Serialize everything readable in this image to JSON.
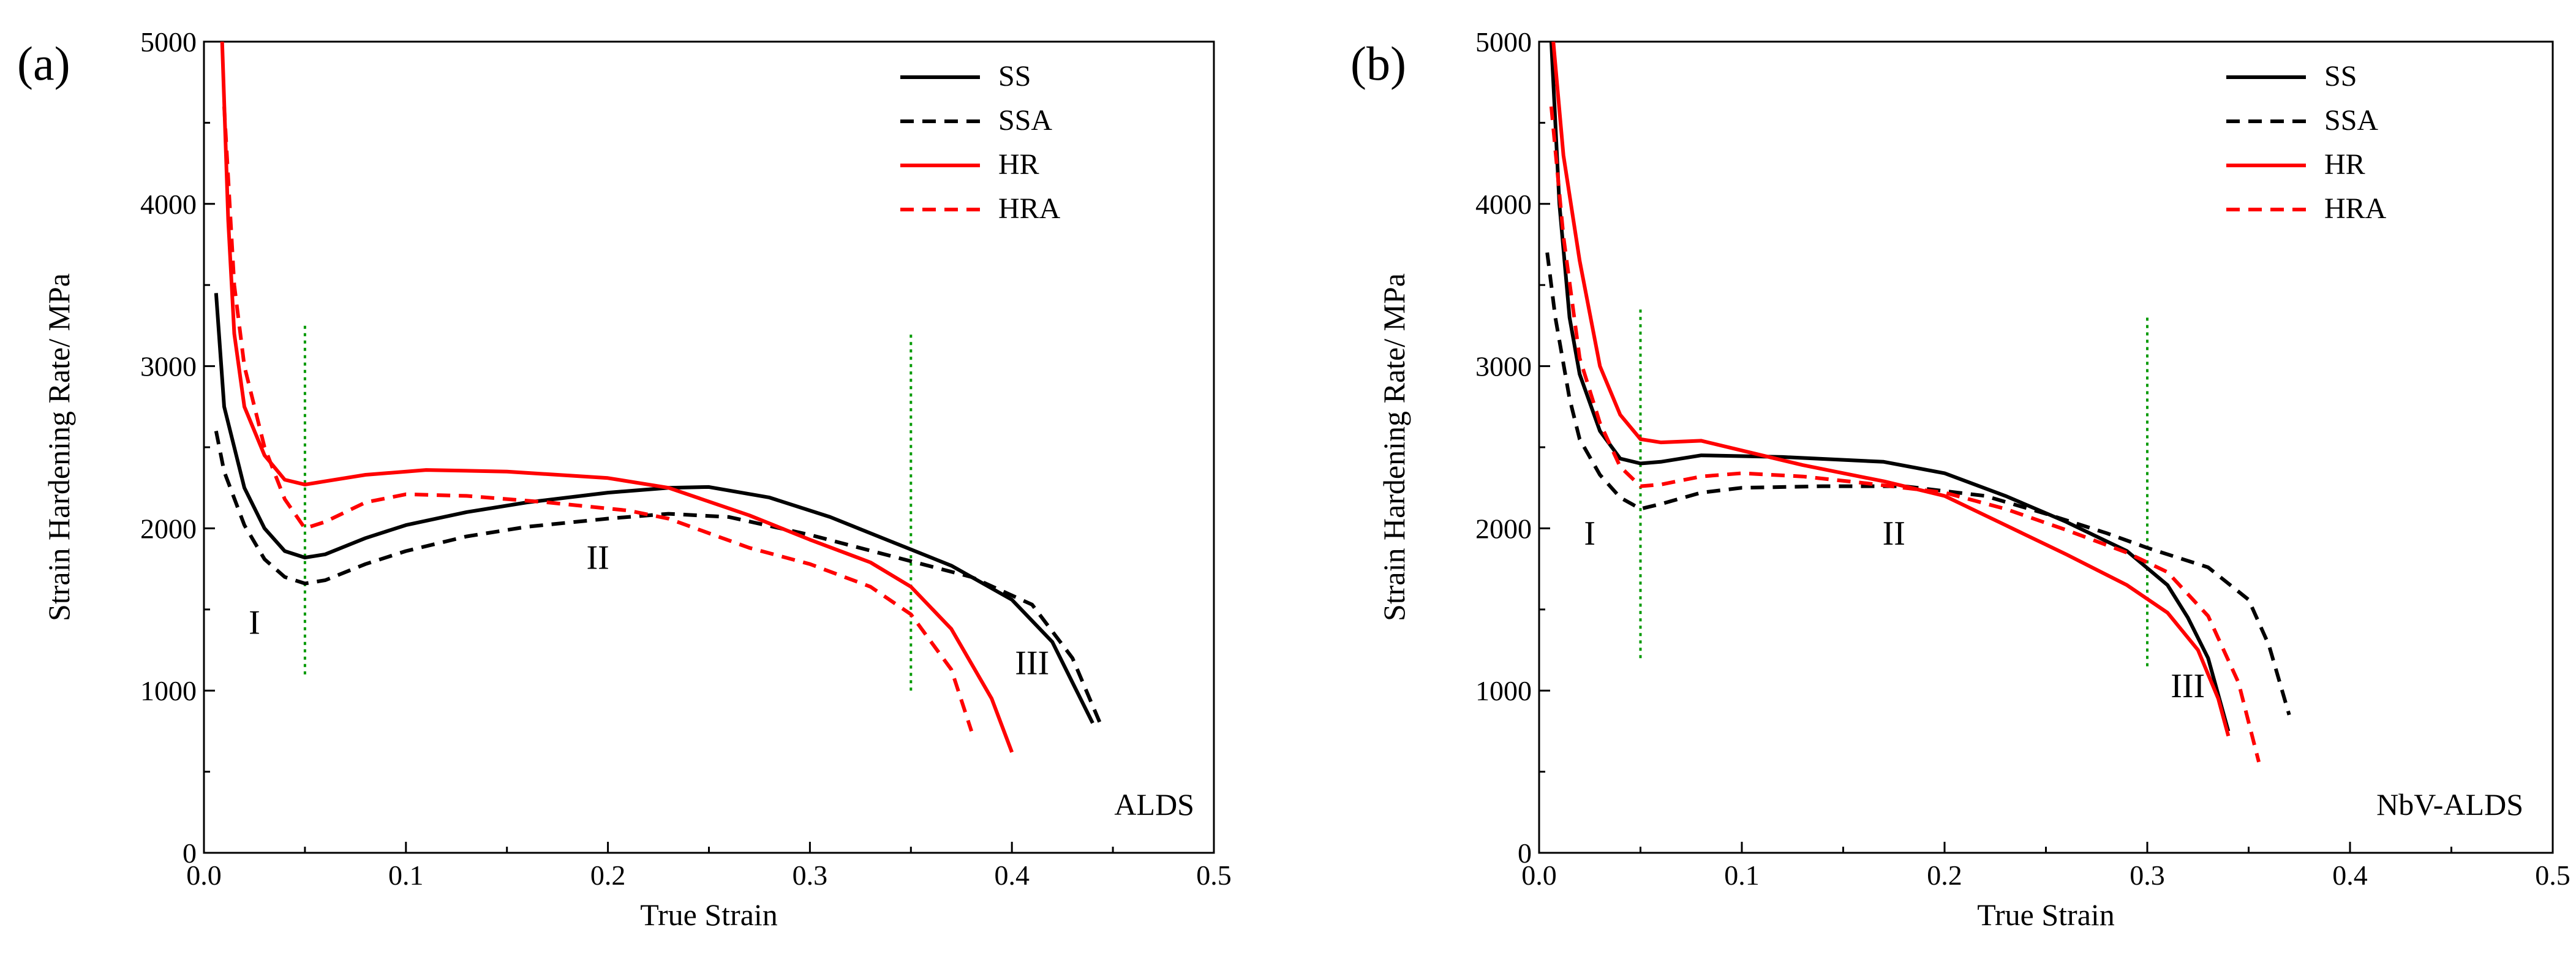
{
  "chart_data": [
    {
      "type": "line",
      "panel_label": "(a)",
      "tag": "ALDS",
      "xlabel": "True Strain",
      "ylabel": "Strain Hardening Rate/ MPa",
      "xlim": [
        0,
        0.5
      ],
      "ylim": [
        0,
        5000
      ],
      "xticks": [
        0.0,
        0.1,
        0.2,
        0.3,
        0.4,
        0.5
      ],
      "xtick_labels": [
        "0.0",
        "0.1",
        "0.2",
        "0.3",
        "0.4",
        "0.5"
      ],
      "yticks": [
        0,
        1000,
        2000,
        3000,
        4000,
        5000
      ],
      "ytick_labels": [
        "0",
        "1000",
        "2000",
        "3000",
        "4000",
        "5000"
      ],
      "legend_position": "top-right",
      "series": [
        {
          "name": "SS",
          "color": "#000000",
          "dash": "solid",
          "points": [
            [
              0.006,
              3450
            ],
            [
              0.01,
              2750
            ],
            [
              0.02,
              2250
            ],
            [
              0.03,
              2000
            ],
            [
              0.04,
              1860
            ],
            [
              0.05,
              1820
            ],
            [
              0.06,
              1840
            ],
            [
              0.08,
              1940
            ],
            [
              0.1,
              2020
            ],
            [
              0.13,
              2100
            ],
            [
              0.16,
              2160
            ],
            [
              0.2,
              2220
            ],
            [
              0.23,
              2250
            ],
            [
              0.25,
              2255
            ],
            [
              0.28,
              2190
            ],
            [
              0.31,
              2070
            ],
            [
              0.34,
              1920
            ],
            [
              0.37,
              1770
            ],
            [
              0.4,
              1560
            ],
            [
              0.42,
              1300
            ],
            [
              0.43,
              1050
            ],
            [
              0.44,
              800
            ]
          ]
        },
        {
          "name": "SSA",
          "color": "#000000",
          "dash": "dashed",
          "points": [
            [
              0.006,
              2600
            ],
            [
              0.01,
              2350
            ],
            [
              0.02,
              2020
            ],
            [
              0.03,
              1810
            ],
            [
              0.04,
              1700
            ],
            [
              0.05,
              1660
            ],
            [
              0.06,
              1680
            ],
            [
              0.08,
              1780
            ],
            [
              0.1,
              1860
            ],
            [
              0.13,
              1950
            ],
            [
              0.16,
              2010
            ],
            [
              0.2,
              2060
            ],
            [
              0.23,
              2090
            ],
            [
              0.26,
              2070
            ],
            [
              0.3,
              1960
            ],
            [
              0.34,
              1830
            ],
            [
              0.38,
              1700
            ],
            [
              0.41,
              1530
            ],
            [
              0.43,
              1200
            ],
            [
              0.445,
              760
            ]
          ]
        },
        {
          "name": "HR",
          "color": "#ff0000",
          "dash": "solid",
          "points": [
            [
              0.009,
              5000
            ],
            [
              0.012,
              3900
            ],
            [
              0.015,
              3200
            ],
            [
              0.02,
              2750
            ],
            [
              0.03,
              2450
            ],
            [
              0.04,
              2300
            ],
            [
              0.05,
              2270
            ],
            [
              0.06,
              2290
            ],
            [
              0.08,
              2330
            ],
            [
              0.11,
              2360
            ],
            [
              0.15,
              2350
            ],
            [
              0.2,
              2310
            ],
            [
              0.23,
              2250
            ],
            [
              0.27,
              2080
            ],
            [
              0.3,
              1930
            ],
            [
              0.33,
              1790
            ],
            [
              0.35,
              1640
            ],
            [
              0.37,
              1380
            ],
            [
              0.39,
              950
            ],
            [
              0.4,
              620
            ]
          ]
        },
        {
          "name": "HRA",
          "color": "#ff0000",
          "dash": "dashed",
          "points": [
            [
              0.01,
              4600
            ],
            [
              0.015,
              3500
            ],
            [
              0.02,
              3000
            ],
            [
              0.03,
              2500
            ],
            [
              0.04,
              2180
            ],
            [
              0.05,
              2000
            ],
            [
              0.06,
              2040
            ],
            [
              0.08,
              2160
            ],
            [
              0.1,
              2210
            ],
            [
              0.13,
              2200
            ],
            [
              0.17,
              2160
            ],
            [
              0.21,
              2110
            ],
            [
              0.23,
              2060
            ],
            [
              0.27,
              1880
            ],
            [
              0.3,
              1780
            ],
            [
              0.33,
              1640
            ],
            [
              0.35,
              1470
            ],
            [
              0.37,
              1130
            ],
            [
              0.38,
              750
            ]
          ]
        }
      ],
      "reference_lines": [
        {
          "x": 0.05,
          "y_range": [
            1100,
            3250
          ],
          "color": "#009900"
        },
        {
          "x": 0.35,
          "y_range": [
            1000,
            3200
          ],
          "color": "#009900"
        }
      ],
      "region_labels": [
        {
          "text": "I",
          "x": 0.025,
          "y": 1350
        },
        {
          "text": "II",
          "x": 0.195,
          "y": 1750
        },
        {
          "text": "III",
          "x": 0.41,
          "y": 1100
        }
      ]
    },
    {
      "type": "line",
      "panel_label": "(b)",
      "tag": "NbV-ALDS",
      "xlabel": "True Strain",
      "ylabel": "Strain Hardening Rate/ MPa",
      "xlim": [
        0,
        0.5
      ],
      "ylim": [
        0,
        5000
      ],
      "xticks": [
        0.0,
        0.1,
        0.2,
        0.3,
        0.4,
        0.5
      ],
      "xtick_labels": [
        "0.0",
        "0.1",
        "0.2",
        "0.3",
        "0.4",
        "0.5"
      ],
      "yticks": [
        0,
        1000,
        2000,
        3000,
        4000,
        5000
      ],
      "ytick_labels": [
        "0",
        "1000",
        "2000",
        "3000",
        "4000",
        "5000"
      ],
      "legend_position": "top-right",
      "series": [
        {
          "name": "SS",
          "color": "#000000",
          "dash": "solid",
          "points": [
            [
              0.006,
              5000
            ],
            [
              0.01,
              4000
            ],
            [
              0.015,
              3300
            ],
            [
              0.02,
              2950
            ],
            [
              0.03,
              2600
            ],
            [
              0.04,
              2430
            ],
            [
              0.05,
              2400
            ],
            [
              0.06,
              2410
            ],
            [
              0.08,
              2450
            ],
            [
              0.12,
              2440
            ],
            [
              0.17,
              2410
            ],
            [
              0.2,
              2340
            ],
            [
              0.23,
              2200
            ],
            [
              0.26,
              2040
            ],
            [
              0.29,
              1860
            ],
            [
              0.31,
              1650
            ],
            [
              0.32,
              1450
            ],
            [
              0.33,
              1200
            ],
            [
              0.34,
              750
            ]
          ]
        },
        {
          "name": "SSA",
          "color": "#000000",
          "dash": "dashed",
          "points": [
            [
              0.004,
              3700
            ],
            [
              0.008,
              3300
            ],
            [
              0.015,
              2800
            ],
            [
              0.02,
              2550
            ],
            [
              0.03,
              2330
            ],
            [
              0.04,
              2190
            ],
            [
              0.05,
              2120
            ],
            [
              0.06,
              2150
            ],
            [
              0.08,
              2220
            ],
            [
              0.1,
              2250
            ],
            [
              0.14,
              2260
            ],
            [
              0.18,
              2260
            ],
            [
              0.22,
              2200
            ],
            [
              0.25,
              2090
            ],
            [
              0.28,
              1970
            ],
            [
              0.3,
              1880
            ],
            [
              0.33,
              1760
            ],
            [
              0.35,
              1560
            ],
            [
              0.36,
              1280
            ],
            [
              0.37,
              850
            ]
          ]
        },
        {
          "name": "HR",
          "color": "#ff0000",
          "dash": "solid",
          "points": [
            [
              0.007,
              5000
            ],
            [
              0.012,
              4300
            ],
            [
              0.02,
              3650
            ],
            [
              0.03,
              3000
            ],
            [
              0.04,
              2700
            ],
            [
              0.05,
              2550
            ],
            [
              0.06,
              2530
            ],
            [
              0.08,
              2540
            ],
            [
              0.1,
              2480
            ],
            [
              0.13,
              2390
            ],
            [
              0.17,
              2290
            ],
            [
              0.2,
              2200
            ],
            [
              0.23,
              2020
            ],
            [
              0.26,
              1840
            ],
            [
              0.29,
              1650
            ],
            [
              0.31,
              1480
            ],
            [
              0.325,
              1250
            ],
            [
              0.335,
              950
            ],
            [
              0.34,
              720
            ]
          ]
        },
        {
          "name": "HRA",
          "color": "#ff0000",
          "dash": "dashed",
          "points": [
            [
              0.006,
              4600
            ],
            [
              0.012,
              3800
            ],
            [
              0.02,
              3050
            ],
            [
              0.03,
              2650
            ],
            [
              0.04,
              2380
            ],
            [
              0.05,
              2260
            ],
            [
              0.06,
              2270
            ],
            [
              0.08,
              2320
            ],
            [
              0.1,
              2340
            ],
            [
              0.13,
              2320
            ],
            [
              0.16,
              2280
            ],
            [
              0.2,
              2220
            ],
            [
              0.23,
              2120
            ],
            [
              0.26,
              1990
            ],
            [
              0.29,
              1850
            ],
            [
              0.31,
              1730
            ],
            [
              0.33,
              1460
            ],
            [
              0.345,
              1050
            ],
            [
              0.355,
              560
            ]
          ]
        }
      ],
      "reference_lines": [
        {
          "x": 0.05,
          "y_range": [
            1200,
            3350
          ],
          "color": "#009900"
        },
        {
          "x": 0.3,
          "y_range": [
            1150,
            3300
          ],
          "color": "#009900"
        }
      ],
      "region_labels": [
        {
          "text": "I",
          "x": 0.025,
          "y": 1900
        },
        {
          "text": "II",
          "x": 0.175,
          "y": 1900
        },
        {
          "text": "III",
          "x": 0.32,
          "y": 960
        }
      ]
    }
  ]
}
